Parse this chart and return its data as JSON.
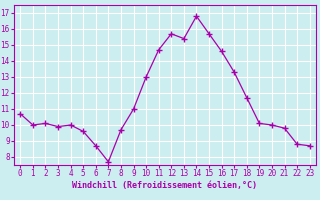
{
  "x": [
    0,
    1,
    2,
    3,
    4,
    5,
    6,
    7,
    8,
    9,
    10,
    11,
    12,
    13,
    14,
    15,
    16,
    17,
    18,
    19,
    20,
    21,
    22,
    23
  ],
  "y": [
    10.7,
    10.0,
    10.1,
    9.9,
    10.0,
    9.6,
    8.7,
    7.7,
    9.7,
    11.0,
    13.0,
    14.7,
    15.7,
    15.4,
    16.8,
    15.7,
    14.6,
    13.3,
    11.7,
    10.1,
    10.0,
    9.8,
    8.8,
    8.7
  ],
  "line_color": "#aa00aa",
  "marker": "D",
  "marker_size": 2.5,
  "bg_color": "#cceef0",
  "grid_color": "#ffffff",
  "xlabel": "Windchill (Refroidissement éolien,°C)",
  "xlabel_color": "#aa00aa",
  "tick_color": "#aa00aa",
  "ylim": [
    7.5,
    17.5
  ],
  "xlim": [
    -0.5,
    23.5
  ],
  "yticks": [
    8,
    9,
    10,
    11,
    12,
    13,
    14,
    15,
    16,
    17
  ],
  "xticks": [
    0,
    1,
    2,
    3,
    4,
    5,
    6,
    7,
    8,
    9,
    10,
    11,
    12,
    13,
    14,
    15,
    16,
    17,
    18,
    19,
    20,
    21,
    22,
    23
  ]
}
